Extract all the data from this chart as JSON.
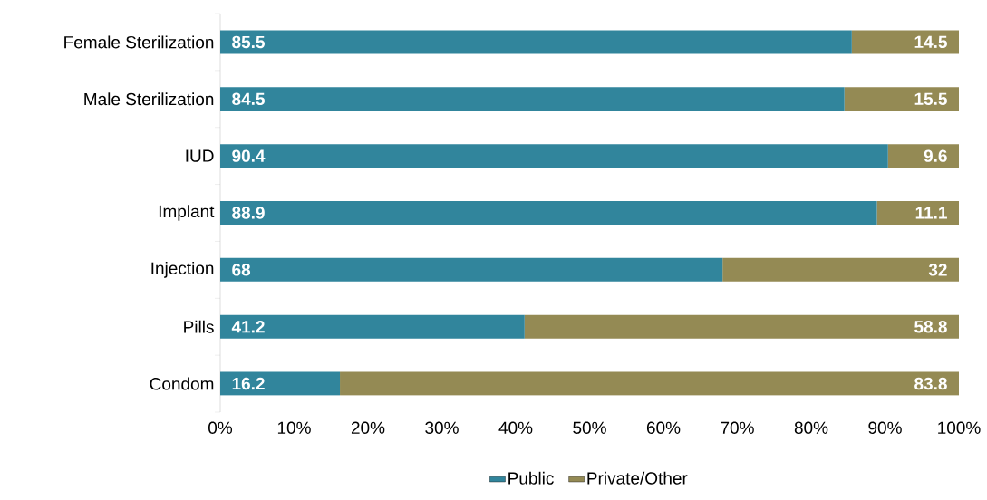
{
  "chart_data": {
    "type": "bar",
    "orientation": "horizontal",
    "stacked": true,
    "data_labels": true,
    "legend": "bottom",
    "grid": false,
    "categories": [
      "Female Sterilization",
      "Male Sterilization",
      "IUD",
      "Implant",
      "Injection",
      "Pills",
      "Condom"
    ],
    "series": [
      {
        "name": "Public",
        "color": "#31859c",
        "values": [
          85.5,
          84.5,
          90.4,
          88.9,
          68,
          41.2,
          16.2
        ]
      },
      {
        "name": "Private/Other",
        "color": "#948a54",
        "values": [
          14.5,
          15.5,
          9.6,
          11.1,
          32,
          58.8,
          83.8
        ]
      }
    ],
    "xlim": [
      0,
      100
    ],
    "xticks": [
      {
        "value": 0,
        "label": "0%"
      },
      {
        "value": 10,
        "label": "10%"
      },
      {
        "value": 20,
        "label": "20%"
      },
      {
        "value": 30,
        "label": "30%"
      },
      {
        "value": 40,
        "label": "40%"
      },
      {
        "value": 50,
        "label": "50%"
      },
      {
        "value": 60,
        "label": "60%"
      },
      {
        "value": 70,
        "label": "70%"
      },
      {
        "value": 80,
        "label": "80%"
      },
      {
        "value": 90,
        "label": "90%"
      },
      {
        "value": 100,
        "label": "100%"
      }
    ]
  }
}
